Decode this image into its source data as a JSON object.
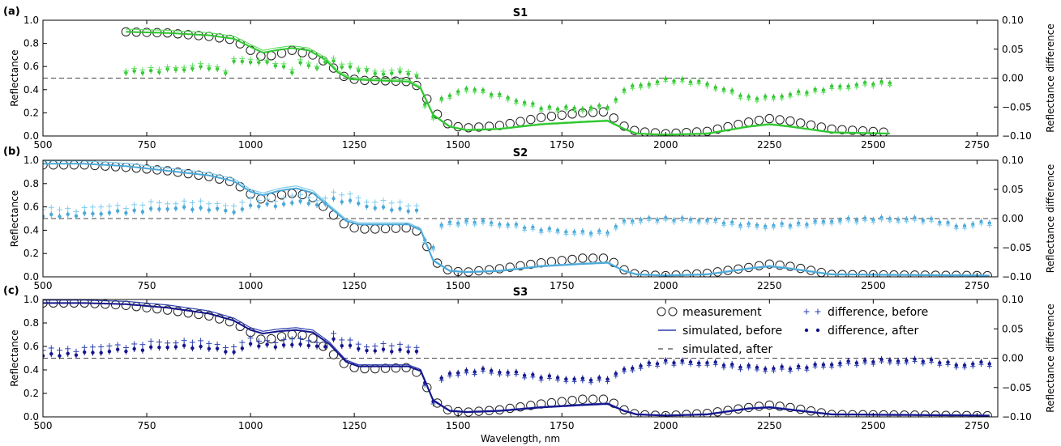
{
  "chart_data": [
    {
      "type": "line",
      "panel": "(a)",
      "title": "S1",
      "ylabel": "Reflectance",
      "y2label": "Reflectance difference",
      "xlabel": "",
      "xlim": [
        500,
        2800
      ],
      "ylim": [
        0,
        1.0
      ],
      "y2lim": [
        -0.1,
        0.1
      ],
      "xticks": [
        500,
        750,
        1000,
        1250,
        1500,
        1750,
        2000,
        2250,
        2500,
        2750
      ],
      "yticks": [
        "0.0",
        "0.2",
        "0.4",
        "0.6",
        "0.8",
        "1.0"
      ],
      "y2ticks": [
        "−0.10",
        "−0.05",
        "0.00",
        "0.05",
        "0.10"
      ],
      "color": "#2ec52e",
      "light_color": "#5fe05f",
      "range": [
        700,
        2540
      ],
      "curve": [
        [
          700,
          0.9
        ],
        [
          800,
          0.89
        ],
        [
          900,
          0.87
        ],
        [
          960,
          0.84
        ],
        [
          1000,
          0.77
        ],
        [
          1030,
          0.72
        ],
        [
          1060,
          0.74
        ],
        [
          1100,
          0.76
        ],
        [
          1140,
          0.74
        ],
        [
          1180,
          0.66
        ],
        [
          1210,
          0.55
        ],
        [
          1240,
          0.49
        ],
        [
          1300,
          0.48
        ],
        [
          1380,
          0.47
        ],
        [
          1410,
          0.41
        ],
        [
          1440,
          0.18
        ],
        [
          1480,
          0.08
        ],
        [
          1520,
          0.05
        ],
        [
          1600,
          0.06
        ],
        [
          1700,
          0.1
        ],
        [
          1800,
          0.12
        ],
        [
          1860,
          0.13
        ],
        [
          1900,
          0.06
        ],
        [
          1930,
          0.02
        ],
        [
          2000,
          0.01
        ],
        [
          2100,
          0.02
        ],
        [
          2200,
          0.08
        ],
        [
          2250,
          0.1
        ],
        [
          2300,
          0.08
        ],
        [
          2400,
          0.03
        ],
        [
          2540,
          0.02
        ]
      ],
      "meas": [
        [
          700,
          0.9
        ],
        [
          800,
          0.89
        ],
        [
          900,
          0.86
        ],
        [
          960,
          0.83
        ],
        [
          1000,
          0.74
        ],
        [
          1030,
          0.68
        ],
        [
          1060,
          0.7
        ],
        [
          1100,
          0.74
        ],
        [
          1150,
          0.7
        ],
        [
          1190,
          0.62
        ],
        [
          1220,
          0.52
        ],
        [
          1260,
          0.48
        ],
        [
          1300,
          0.48
        ],
        [
          1380,
          0.47
        ],
        [
          1410,
          0.42
        ],
        [
          1440,
          0.22
        ],
        [
          1480,
          0.09
        ],
        [
          1520,
          0.07
        ],
        [
          1600,
          0.09
        ],
        [
          1700,
          0.16
        ],
        [
          1800,
          0.2
        ],
        [
          1860,
          0.21
        ],
        [
          1890,
          0.1
        ],
        [
          1930,
          0.04
        ],
        [
          2000,
          0.02
        ],
        [
          2100,
          0.04
        ],
        [
          2200,
          0.12
        ],
        [
          2250,
          0.15
        ],
        [
          2300,
          0.13
        ],
        [
          2400,
          0.06
        ],
        [
          2540,
          0.03
        ]
      ],
      "diff_after": [
        [
          700,
          0.0092
        ],
        [
          800,
          0.0138
        ],
        [
          900,
          0.0185
        ],
        [
          940,
          0.0111
        ],
        [
          960,
          0.0275
        ],
        [
          990,
          0.0296
        ],
        [
          1030,
          0.0265
        ],
        [
          1070,
          0.0222
        ],
        [
          1100,
          0.0122
        ],
        [
          1120,
          0.0251
        ],
        [
          1160,
          0.0185
        ],
        [
          1190,
          0.0325
        ],
        [
          1210,
          0.0222
        ],
        [
          1250,
          0.0175
        ],
        [
          1300,
          0.008
        ],
        [
          1380,
          0.0092
        ],
        [
          1410,
          -0.0015
        ],
        [
          1430,
          -0.085
        ],
        [
          1460,
          -0.0355
        ],
        [
          1500,
          -0.0235
        ],
        [
          1540,
          -0.0185
        ],
        [
          1600,
          -0.03
        ],
        [
          1700,
          -0.051
        ],
        [
          1800,
          -0.0525
        ],
        [
          1870,
          -0.0485
        ],
        [
          1900,
          -0.0185
        ],
        [
          2000,
          -0.0038
        ],
        [
          2050,
          -0.003
        ],
        [
          2100,
          -0.0105
        ],
        [
          2200,
          -0.0335
        ],
        [
          2250,
          -0.0338
        ],
        [
          2300,
          -0.0285
        ],
        [
          2400,
          -0.016
        ],
        [
          2540,
          -0.0062
        ]
      ],
      "diff_before_offset": 0.005,
      "diff_before_end": 1400
    },
    {
      "type": "line",
      "panel": "(b)",
      "title": "S2",
      "ylabel": "Reflectance",
      "y2label": "Reflectance difference",
      "xlabel": "",
      "xlim": [
        500,
        2800
      ],
      "ylim": [
        0,
        1.0
      ],
      "y2lim": [
        -0.1,
        0.1
      ],
      "xticks": [
        500,
        750,
        1000,
        1250,
        1500,
        1750,
        2000,
        2250,
        2500,
        2750
      ],
      "yticks": [
        "0.0",
        "0.2",
        "0.4",
        "0.6",
        "0.8",
        "1.0"
      ],
      "y2ticks": [
        "−0.10",
        "−0.05",
        "0.00",
        "0.05",
        "0.10"
      ],
      "color": "#4aa8d8",
      "light_color": "#7fcbee",
      "range": [
        500,
        2780
      ],
      "curve": [
        [
          500,
          0.97
        ],
        [
          600,
          0.97
        ],
        [
          700,
          0.95
        ],
        [
          800,
          0.91
        ],
        [
          900,
          0.87
        ],
        [
          960,
          0.82
        ],
        [
          1000,
          0.73
        ],
        [
          1030,
          0.7
        ],
        [
          1070,
          0.74
        ],
        [
          1110,
          0.76
        ],
        [
          1150,
          0.72
        ],
        [
          1190,
          0.6
        ],
        [
          1230,
          0.48
        ],
        [
          1260,
          0.45
        ],
        [
          1300,
          0.45
        ],
        [
          1380,
          0.45
        ],
        [
          1410,
          0.4
        ],
        [
          1440,
          0.14
        ],
        [
          1480,
          0.05
        ],
        [
          1520,
          0.04
        ],
        [
          1600,
          0.05
        ],
        [
          1700,
          0.09
        ],
        [
          1800,
          0.11
        ],
        [
          1860,
          0.12
        ],
        [
          1900,
          0.05
        ],
        [
          1930,
          0.02
        ],
        [
          2000,
          0.01
        ],
        [
          2100,
          0.02
        ],
        [
          2200,
          0.07
        ],
        [
          2250,
          0.09
        ],
        [
          2300,
          0.07
        ],
        [
          2400,
          0.02
        ],
        [
          2780,
          0.01
        ]
      ],
      "meas": [
        [
          500,
          0.96
        ],
        [
          600,
          0.96
        ],
        [
          700,
          0.94
        ],
        [
          800,
          0.91
        ],
        [
          900,
          0.86
        ],
        [
          960,
          0.81
        ],
        [
          1000,
          0.71
        ],
        [
          1030,
          0.66
        ],
        [
          1070,
          0.7
        ],
        [
          1110,
          0.72
        ],
        [
          1150,
          0.68
        ],
        [
          1190,
          0.56
        ],
        [
          1230,
          0.44
        ],
        [
          1260,
          0.41
        ],
        [
          1300,
          0.41
        ],
        [
          1380,
          0.42
        ],
        [
          1410,
          0.38
        ],
        [
          1440,
          0.14
        ],
        [
          1480,
          0.05
        ],
        [
          1520,
          0.04
        ],
        [
          1600,
          0.07
        ],
        [
          1700,
          0.12
        ],
        [
          1800,
          0.16
        ],
        [
          1860,
          0.16
        ],
        [
          1900,
          0.06
        ],
        [
          1930,
          0.02
        ],
        [
          2000,
          0.01
        ],
        [
          2100,
          0.03
        ],
        [
          2200,
          0.08
        ],
        [
          2250,
          0.11
        ],
        [
          2300,
          0.09
        ],
        [
          2400,
          0.02
        ],
        [
          2780,
          0.01
        ]
      ],
      "diff_after": [
        [
          500,
          0.004
        ],
        [
          600,
          0.0075
        ],
        [
          700,
          0.0115
        ],
        [
          800,
          0.0175
        ],
        [
          900,
          0.017
        ],
        [
          960,
          0.012
        ],
        [
          1000,
          0.02
        ],
        [
          1030,
          0.024
        ],
        [
          1080,
          0.023
        ],
        [
          1120,
          0.031
        ],
        [
          1160,
          0.021
        ],
        [
          1190,
          0.0305
        ],
        [
          1200,
          0.033
        ],
        [
          1250,
          0.028
        ],
        [
          1300,
          0.018
        ],
        [
          1380,
          0.015
        ],
        [
          1410,
          0.011
        ],
        [
          1430,
          -0.085
        ],
        [
          1450,
          -0.0125
        ],
        [
          1500,
          -0.0065
        ],
        [
          1540,
          -0.0045
        ],
        [
          1600,
          -0.009
        ],
        [
          1700,
          -0.018
        ],
        [
          1800,
          -0.0245
        ],
        [
          1870,
          -0.0215
        ],
        [
          1900,
          -0.004
        ],
        [
          2000,
          0.0
        ],
        [
          2100,
          -0.003
        ],
        [
          2200,
          -0.011
        ],
        [
          2250,
          -0.0125
        ],
        [
          2300,
          -0.0105
        ],
        [
          2400,
          -0.004
        ],
        [
          2500,
          0.0
        ],
        [
          2650,
          -0.002
        ],
        [
          2700,
          -0.0135
        ],
        [
          2780,
          -0.006
        ]
      ],
      "diff_before_offset": 0.012,
      "diff_before_end": 1400
    },
    {
      "type": "line",
      "panel": "(c)",
      "title": "S3",
      "ylabel": "Reflectance",
      "y2label": "Reflectance difference",
      "xlabel": "Wavelength, nm",
      "xlim": [
        500,
        2800
      ],
      "ylim": [
        0,
        1.0
      ],
      "y2lim": [
        -0.1,
        0.1
      ],
      "xticks": [
        500,
        750,
        1000,
        1250,
        1500,
        1750,
        2000,
        2250,
        2500,
        2750
      ],
      "yticks": [
        "0.0",
        "0.2",
        "0.4",
        "0.6",
        "0.8",
        "1.0"
      ],
      "y2ticks": [
        "−0.10",
        "−0.05",
        "0.00",
        "0.05",
        "0.10"
      ],
      "color": "#14148c",
      "light_color": "#2b3fb0",
      "range": [
        500,
        2780
      ],
      "curve": [
        [
          500,
          0.97
        ],
        [
          600,
          0.97
        ],
        [
          700,
          0.96
        ],
        [
          800,
          0.93
        ],
        [
          900,
          0.88
        ],
        [
          960,
          0.82
        ],
        [
          1000,
          0.74
        ],
        [
          1030,
          0.71
        ],
        [
          1070,
          0.73
        ],
        [
          1110,
          0.74
        ],
        [
          1150,
          0.72
        ],
        [
          1190,
          0.62
        ],
        [
          1230,
          0.47
        ],
        [
          1260,
          0.43
        ],
        [
          1300,
          0.43
        ],
        [
          1380,
          0.43
        ],
        [
          1410,
          0.39
        ],
        [
          1440,
          0.14
        ],
        [
          1480,
          0.05
        ],
        [
          1520,
          0.04
        ],
        [
          1600,
          0.05
        ],
        [
          1700,
          0.08
        ],
        [
          1800,
          0.1
        ],
        [
          1860,
          0.11
        ],
        [
          1900,
          0.05
        ],
        [
          1930,
          0.02
        ],
        [
          2000,
          0.01
        ],
        [
          2100,
          0.02
        ],
        [
          2200,
          0.07
        ],
        [
          2250,
          0.08
        ],
        [
          2300,
          0.06
        ],
        [
          2400,
          0.02
        ],
        [
          2780,
          0.01
        ]
      ],
      "meas": [
        [
          500,
          0.97
        ],
        [
          600,
          0.97
        ],
        [
          700,
          0.95
        ],
        [
          800,
          0.91
        ],
        [
          900,
          0.86
        ],
        [
          960,
          0.8
        ],
        [
          1000,
          0.72
        ],
        [
          1030,
          0.65
        ],
        [
          1070,
          0.68
        ],
        [
          1110,
          0.71
        ],
        [
          1150,
          0.67
        ],
        [
          1190,
          0.56
        ],
        [
          1230,
          0.44
        ],
        [
          1260,
          0.41
        ],
        [
          1300,
          0.41
        ],
        [
          1380,
          0.42
        ],
        [
          1410,
          0.36
        ],
        [
          1440,
          0.14
        ],
        [
          1480,
          0.05
        ],
        [
          1520,
          0.04
        ],
        [
          1600,
          0.06
        ],
        [
          1700,
          0.11
        ],
        [
          1800,
          0.15
        ],
        [
          1860,
          0.15
        ],
        [
          1900,
          0.06
        ],
        [
          1930,
          0.02
        ],
        [
          2000,
          0.01
        ],
        [
          2100,
          0.03
        ],
        [
          2200,
          0.08
        ],
        [
          2250,
          0.1
        ],
        [
          2300,
          0.08
        ],
        [
          2400,
          0.02
        ],
        [
          2780,
          0.01
        ]
      ],
      "diff_after": [
        [
          500,
          0.004
        ],
        [
          600,
          0.0085
        ],
        [
          700,
          0.0135
        ],
        [
          800,
          0.0195
        ],
        [
          900,
          0.0185
        ],
        [
          950,
          0.009
        ],
        [
          1000,
          0.022
        ],
        [
          1030,
          0.0225
        ],
        [
          1080,
          0.0205
        ],
        [
          1120,
          0.025
        ],
        [
          1160,
          0.018
        ],
        [
          1190,
          0.023
        ],
        [
          1200,
          0.0315
        ],
        [
          1220,
          0.0235
        ],
        [
          1260,
          0.016
        ],
        [
          1300,
          0.0125
        ],
        [
          1380,
          0.0135
        ],
        [
          1410,
          0.008
        ],
        [
          1430,
          -0.092
        ],
        [
          1460,
          -0.034
        ],
        [
          1500,
          -0.0235
        ],
        [
          1560,
          -0.02
        ],
        [
          1600,
          -0.023
        ],
        [
          1700,
          -0.031
        ],
        [
          1800,
          -0.037
        ],
        [
          1870,
          -0.033
        ],
        [
          1900,
          -0.019
        ],
        [
          2000,
          -0.005
        ],
        [
          2100,
          -0.008
        ],
        [
          2200,
          -0.0145
        ],
        [
          2250,
          -0.018
        ],
        [
          2300,
          -0.0165
        ],
        [
          2400,
          -0.01
        ],
        [
          2500,
          -0.004
        ],
        [
          2650,
          -0.004
        ],
        [
          2700,
          -0.012
        ],
        [
          2780,
          -0.008
        ]
      ],
      "diff_before_offset": 0.01,
      "diff_before_end": 1400,
      "legend": [
        {
          "label": "measurement",
          "marker": "circle"
        },
        {
          "label": "difference, before",
          "marker": "plus"
        },
        {
          "label": "simulated, before",
          "marker": "line"
        },
        {
          "label": "difference, after",
          "marker": "dot"
        },
        {
          "label": "simulated, after",
          "marker": "dash"
        }
      ],
      "legend_location": "upper right"
    }
  ]
}
